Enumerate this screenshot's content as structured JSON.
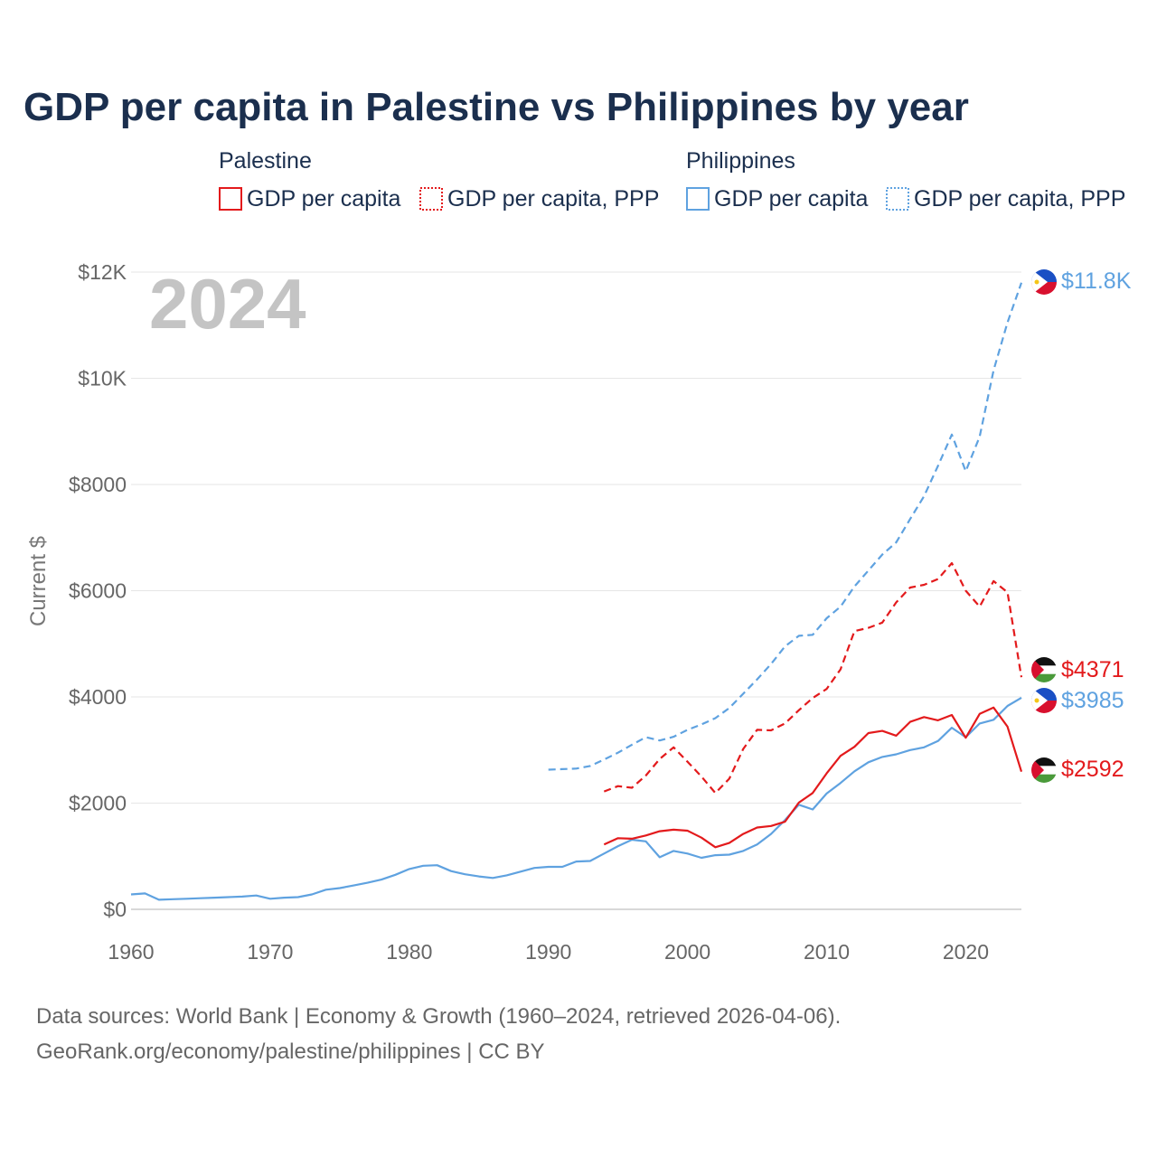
{
  "title": "GDP per capita in Palestine vs Philippines by year",
  "year_label": "2024",
  "legend": {
    "groups": [
      {
        "name": "Palestine",
        "color": "#e31a1c",
        "items": [
          "GDP per capita",
          "GDP per capita, PPP"
        ]
      },
      {
        "name": "Philippines",
        "color": "#5fa2e0",
        "items": [
          "GDP per capita",
          "GDP per capita, PPP"
        ]
      }
    ]
  },
  "footer": {
    "line1": "Data sources: World Bank | Economy & Growth (1960–2024, retrieved 2026-04-06).",
    "line2": "GeoRank.org/economy/palestine/philippines | CC BY"
  },
  "colors": {
    "palestine": "#e31a1c",
    "philippines": "#5fa2e0"
  },
  "chart_data": {
    "type": "line",
    "title": "GDP per capita in Palestine vs Philippines by year",
    "xlabel": "",
    "ylabel": "Current $",
    "xlim": [
      1960,
      2024
    ],
    "ylim": [
      0,
      12000
    ],
    "x_ticks": [
      1960,
      1970,
      1980,
      1990,
      2000,
      2010,
      2020
    ],
    "y_ticks": [
      0,
      2000,
      4000,
      6000,
      8000,
      10000,
      12000
    ],
    "y_tick_labels": [
      "$0",
      "$2000",
      "$4000",
      "$6000",
      "$8000",
      "$10K",
      "$12K"
    ],
    "grid": true,
    "series": [
      {
        "name": "Philippines GDP per capita, PPP",
        "country": "Philippines",
        "style": "dashed",
        "color": "#5fa2e0",
        "end_label": "$11.8K",
        "x": [
          1990,
          1991,
          1992,
          1993,
          1994,
          1995,
          1996,
          1997,
          1998,
          1999,
          2000,
          2001,
          2002,
          2003,
          2004,
          2005,
          2006,
          2007,
          2008,
          2009,
          2010,
          2011,
          2012,
          2013,
          2014,
          2015,
          2016,
          2017,
          2018,
          2019,
          2020,
          2021,
          2022,
          2023,
          2024
        ],
        "y": [
          2630,
          2640,
          2650,
          2700,
          2820,
          2950,
          3100,
          3240,
          3180,
          3250,
          3380,
          3480,
          3600,
          3790,
          4060,
          4330,
          4620,
          4950,
          5150,
          5170,
          5480,
          5700,
          6080,
          6380,
          6680,
          6910,
          7350,
          7780,
          8350,
          8940,
          8250,
          8900,
          10150,
          11050,
          11800
        ]
      },
      {
        "name": "Palestine GDP per capita, PPP",
        "country": "Palestine",
        "style": "dashed",
        "color": "#e31a1c",
        "end_label": "$4371",
        "x": [
          1994,
          1995,
          1996,
          1997,
          1998,
          1999,
          2000,
          2001,
          2002,
          2003,
          2004,
          2005,
          2006,
          2007,
          2008,
          2009,
          2010,
          2011,
          2012,
          2013,
          2014,
          2015,
          2016,
          2017,
          2018,
          2019,
          2020,
          2021,
          2022,
          2023,
          2024
        ],
        "y": [
          2220,
          2320,
          2290,
          2520,
          2830,
          3050,
          2780,
          2500,
          2190,
          2460,
          3020,
          3380,
          3370,
          3500,
          3750,
          3980,
          4150,
          4520,
          5240,
          5300,
          5400,
          5780,
          6060,
          6110,
          6220,
          6520,
          6000,
          5700,
          6180,
          5970,
          4371
        ]
      },
      {
        "name": "Philippines GDP per capita",
        "country": "Philippines",
        "style": "solid",
        "color": "#5fa2e0",
        "end_label": "$3985",
        "x": [
          1960,
          1961,
          1962,
          1963,
          1964,
          1965,
          1966,
          1967,
          1968,
          1969,
          1970,
          1971,
          1972,
          1973,
          1974,
          1975,
          1976,
          1977,
          1978,
          1979,
          1980,
          1981,
          1982,
          1983,
          1984,
          1985,
          1986,
          1987,
          1988,
          1989,
          1990,
          1991,
          1992,
          1993,
          1994,
          1995,
          1996,
          1997,
          1998,
          1999,
          2000,
          2001,
          2002,
          2003,
          2004,
          2005,
          2006,
          2007,
          2008,
          2009,
          2010,
          2011,
          2012,
          2013,
          2014,
          2015,
          2016,
          2017,
          2018,
          2019,
          2020,
          2021,
          2022,
          2023,
          2024
        ],
        "y": [
          280,
          300,
          180,
          190,
          200,
          210,
          220,
          230,
          240,
          260,
          200,
          220,
          230,
          280,
          370,
          400,
          450,
          500,
          560,
          650,
          760,
          820,
          830,
          720,
          660,
          620,
          590,
          640,
          710,
          780,
          800,
          800,
          900,
          910,
          1050,
          1190,
          1310,
          1280,
          980,
          1100,
          1050,
          970,
          1020,
          1030,
          1100,
          1220,
          1420,
          1680,
          1970,
          1880,
          2180,
          2380,
          2600,
          2770,
          2870,
          2920,
          3000,
          3050,
          3170,
          3420,
          3240,
          3500,
          3570,
          3830,
          3985
        ]
      },
      {
        "name": "Palestine GDP per capita",
        "country": "Palestine",
        "style": "solid",
        "color": "#e31a1c",
        "end_label": "$2592",
        "x": [
          1994,
          1995,
          1996,
          1997,
          1998,
          1999,
          2000,
          2001,
          2002,
          2003,
          2004,
          2005,
          2006,
          2007,
          2008,
          2009,
          2010,
          2011,
          2012,
          2013,
          2014,
          2015,
          2016,
          2017,
          2018,
          2019,
          2020,
          2021,
          2022,
          2023,
          2024
        ],
        "y": [
          1220,
          1340,
          1330,
          1390,
          1470,
          1500,
          1480,
          1350,
          1170,
          1250,
          1420,
          1540,
          1570,
          1650,
          2010,
          2190,
          2560,
          2890,
          3060,
          3320,
          3360,
          3270,
          3530,
          3620,
          3560,
          3660,
          3230,
          3680,
          3800,
          3440,
          2592
        ]
      }
    ]
  }
}
